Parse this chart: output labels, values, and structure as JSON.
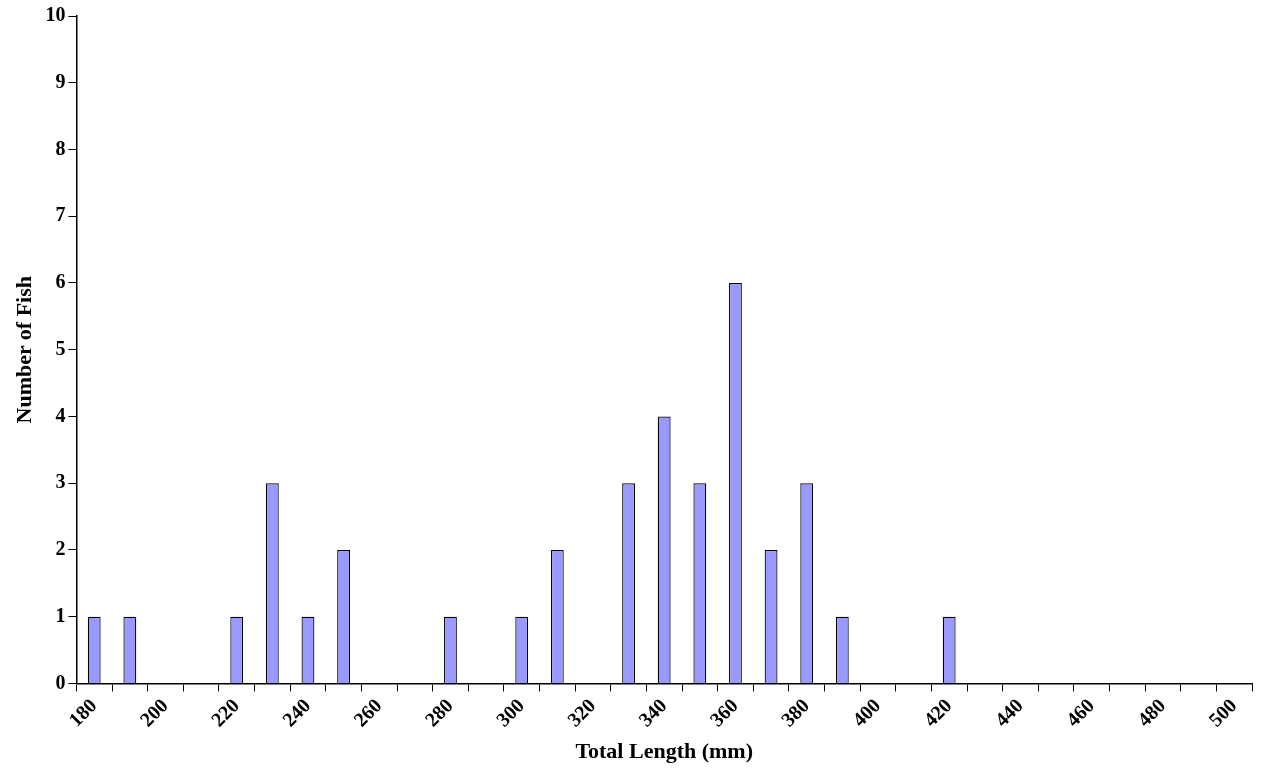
{
  "chart_data": {
    "type": "bar",
    "xlabel": "Total Length (mm)",
    "ylabel": "Number of Fish",
    "categories": [
      "180",
      null,
      "200",
      null,
      "220",
      null,
      "240",
      null,
      "260",
      null,
      "280",
      null,
      "300",
      null,
      "320",
      null,
      "340",
      null,
      "360",
      null,
      "380",
      null,
      "400",
      null,
      "420",
      null,
      "440",
      null,
      "460",
      null,
      "480",
      null,
      "500"
    ],
    "values": [
      1,
      1,
      0,
      0,
      1,
      3,
      1,
      2,
      0,
      0,
      1,
      0,
      1,
      2,
      0,
      3,
      4,
      3,
      6,
      2,
      3,
      1,
      0,
      0,
      1,
      0,
      0,
      0,
      0,
      0,
      0,
      0,
      0
    ],
    "color": "#9999ff",
    "ylim": [
      0,
      10
    ],
    "yticks": [
      0,
      1,
      2,
      3,
      4,
      5,
      6,
      7,
      8,
      9,
      10
    ],
    "grid": false,
    "legend": false
  }
}
